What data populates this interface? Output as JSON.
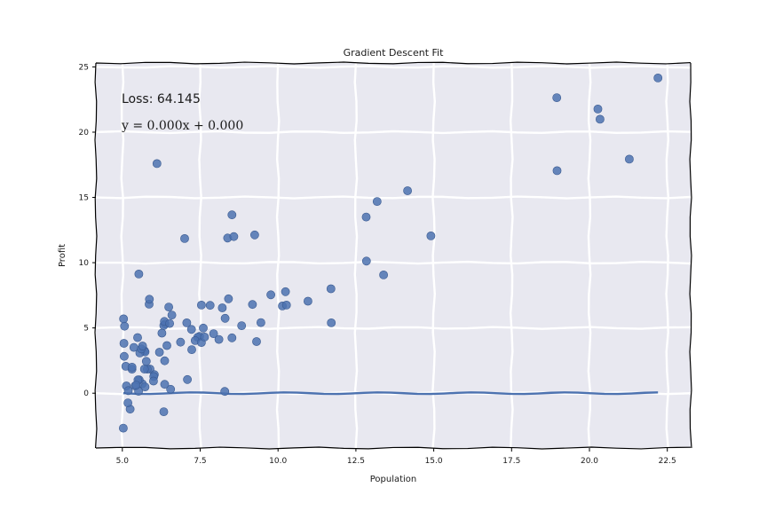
{
  "chart_data": {
    "type": "scatter",
    "title": "Gradient Descent Fit",
    "xlabel": "Population",
    "ylabel": "Profit",
    "xlim": [
      4.15,
      23.25
    ],
    "ylim": [
      -4.2,
      25.3
    ],
    "xticks": [
      5.0,
      7.5,
      10.0,
      12.5,
      15.0,
      17.5,
      20.0,
      22.5
    ],
    "xtick_labels": [
      "5.0",
      "7.5",
      "10.0",
      "12.5",
      "15.0",
      "17.5",
      "20.0",
      "22.5"
    ],
    "yticks": [
      0,
      5,
      10,
      15,
      20,
      25
    ],
    "ytick_labels": [
      "0",
      "5",
      "10",
      "15",
      "20",
      "25"
    ],
    "grid": true,
    "background": "#e8e8f0",
    "marker_color": "#4c72b0",
    "line_color": "#4c72b0",
    "annotations": {
      "loss": "Loss: 64.145",
      "equation": "y = 0.000x + 0.000"
    },
    "points": [
      [
        6.11,
        17.59
      ],
      [
        5.53,
        9.13
      ],
      [
        8.52,
        13.66
      ],
      [
        7.0,
        11.85
      ],
      [
        5.86,
        6.82
      ],
      [
        8.38,
        11.89
      ],
      [
        7.48,
        4.35
      ],
      [
        8.58,
        12.0
      ],
      [
        6.49,
        6.6
      ],
      [
        5.05,
        3.82
      ],
      [
        5.71,
        3.25
      ],
      [
        14.16,
        15.51
      ],
      [
        5.73,
        3.16
      ],
      [
        8.41,
        7.23
      ],
      [
        5.64,
        0.72
      ],
      [
        5.37,
        3.51
      ],
      [
        6.37,
        5.3
      ],
      [
        5.13,
        0.56
      ],
      [
        6.43,
        3.65
      ],
      [
        7.07,
        5.39
      ],
      [
        6.19,
        3.14
      ],
      [
        20.27,
        21.77
      ],
      [
        5.49,
        4.26
      ],
      [
        6.33,
        5.19
      ],
      [
        5.56,
        3.08
      ],
      [
        18.95,
        22.64
      ],
      [
        12.83,
        13.5
      ],
      [
        10.96,
        7.05
      ],
      [
        13.18,
        14.69
      ],
      [
        22.2,
        24.15
      ],
      [
        5.25,
        -1.22
      ],
      [
        6.59,
        5.99
      ],
      [
        9.25,
        12.13
      ],
      [
        5.89,
        1.85
      ],
      [
        8.21,
        6.54
      ],
      [
        7.93,
        4.56
      ],
      [
        8.1,
        4.12
      ],
      [
        5.61,
        3.39
      ],
      [
        12.84,
        10.12
      ],
      [
        6.35,
        5.5
      ],
      [
        5.41,
        0.56
      ],
      [
        6.87,
        3.91
      ],
      [
        11.71,
        5.39
      ],
      [
        5.77,
        2.44
      ],
      [
        7.82,
        6.73
      ],
      [
        7.09,
        1.05
      ],
      [
        5.07,
        5.13
      ],
      [
        5.8,
        1.84
      ],
      [
        11.7,
        8.0
      ],
      [
        5.54,
        1.02
      ],
      [
        7.54,
        6.75
      ],
      [
        5.31,
        1.84
      ],
      [
        7.42,
        4.29
      ],
      [
        7.6,
        4.99
      ],
      [
        6.03,
        1.42
      ],
      [
        6.33,
        -1.42
      ],
      [
        6.36,
        2.48
      ],
      [
        6.27,
        4.6
      ],
      [
        5.65,
        3.62
      ],
      [
        9.31,
        3.96
      ],
      [
        9.45,
        5.41
      ],
      [
        8.83,
        5.17
      ],
      [
        5.18,
        -0.74
      ],
      [
        21.28,
        17.93
      ],
      [
        14.91,
        12.05
      ],
      [
        18.96,
        17.05
      ],
      [
        7.22,
        4.89
      ],
      [
        8.3,
        5.74
      ],
      [
        10.24,
        7.78
      ],
      [
        5.5,
        1.02
      ],
      [
        20.34,
        20.99
      ],
      [
        10.14,
        6.68
      ],
      [
        7.34,
        4.03
      ],
      [
        6.01,
        1.28
      ],
      [
        7.23,
        3.34
      ],
      [
        5.03,
        -2.68
      ],
      [
        6.55,
        0.3
      ],
      [
        7.54,
        3.88
      ],
      [
        5.04,
        5.7
      ],
      [
        10.27,
        6.75
      ],
      [
        5.11,
        2.06
      ],
      [
        5.73,
        0.48
      ],
      [
        5.19,
        0.2
      ],
      [
        6.36,
        0.68
      ],
      [
        9.77,
        7.54
      ],
      [
        6.52,
        5.34
      ],
      [
        8.52,
        4.24
      ],
      [
        9.18,
        6.8
      ],
      [
        6.0,
        0.93
      ],
      [
        5.52,
        0.15
      ],
      [
        5.06,
        2.82
      ],
      [
        5.71,
        1.85
      ],
      [
        7.64,
        4.3
      ],
      [
        5.87,
        7.2
      ],
      [
        5.31,
        1.99
      ],
      [
        8.29,
        0.14
      ],
      [
        13.39,
        9.06
      ],
      [
        5.44,
        0.62
      ]
    ],
    "fit_line": {
      "x": [
        5.03,
        22.2
      ],
      "y": [
        0.0,
        0.0
      ]
    }
  }
}
